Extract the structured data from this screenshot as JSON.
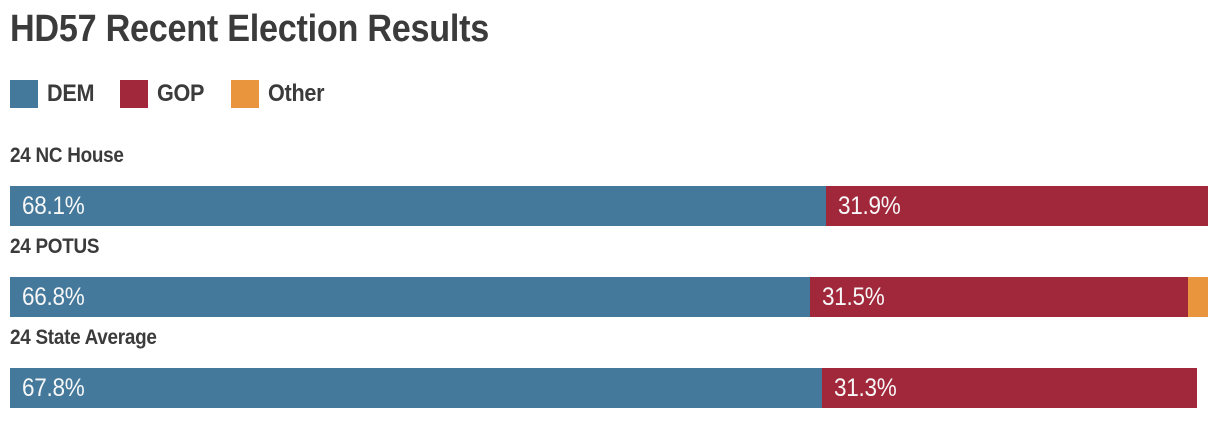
{
  "title": "HD57 Recent Election Results",
  "colors": {
    "text": "#3B3B3B",
    "background": "#FFFFFF",
    "bar_label": "#F7F7F7",
    "dem": "#44799B",
    "gop": "#A1283B",
    "other": "#E9953E"
  },
  "legend": [
    {
      "label": "DEM",
      "key": "dem"
    },
    {
      "label": "GOP",
      "key": "gop"
    },
    {
      "label": "Other",
      "key": "other"
    }
  ],
  "chart_data": {
    "type": "bar",
    "orientation": "horizontal",
    "stacked": true,
    "title": "HD57 Recent Election Results",
    "categories": [
      "24 NC House",
      "24 POTUS",
      "24 State Average"
    ],
    "series": [
      {
        "name": "DEM",
        "key": "dem",
        "values": [
          68.1,
          66.8,
          67.8
        ]
      },
      {
        "name": "GOP",
        "key": "gop",
        "values": [
          31.9,
          31.5,
          31.3
        ]
      },
      {
        "name": "Other",
        "key": "other",
        "values": [
          0,
          1.7,
          0
        ]
      }
    ],
    "segment_labels": [
      [
        "68.1%",
        "31.9%",
        ""
      ],
      [
        "66.8%",
        "31.5%",
        ""
      ],
      [
        "67.8%",
        "31.3%",
        ""
      ]
    ],
    "xlim": [
      0,
      100
    ],
    "grid": false,
    "legend_position": "top-left",
    "value_labels_inside_bars": true
  }
}
